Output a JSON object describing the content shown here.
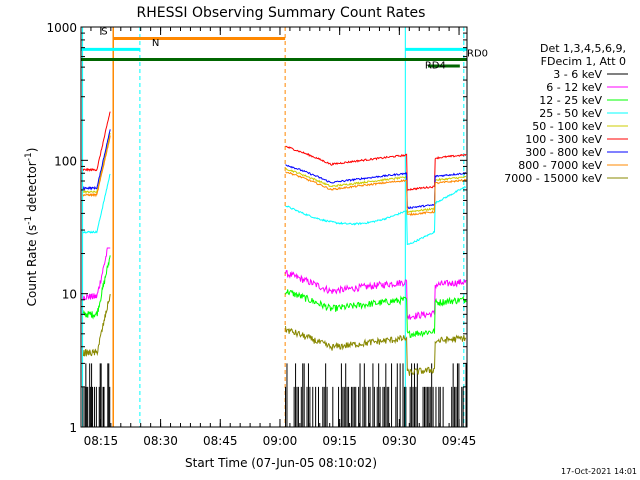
{
  "chart_data": {
    "type": "line",
    "title": "RHESSI Observing Summary Count Rates",
    "xlabel": "Start Time (07-Jun-05 08:10:02)",
    "ylabel_main": "Count Rate (s",
    "ylabel_sup1": "-1",
    "ylabel_mid": " detector",
    "ylabel_sup2": "-1",
    "ylabel_end": ")",
    "yscale": "log",
    "ylim": [
      1,
      1000
    ],
    "xlim_min": [
      0,
      97
    ],
    "y_ticks": [
      {
        "value": 1,
        "label": "1"
      },
      {
        "value": 10,
        "label": "10"
      },
      {
        "value": 100,
        "label": "100"
      },
      {
        "value": 1000,
        "label": "1000"
      }
    ],
    "x_ticks": [
      {
        "min": 5,
        "label": "08:15"
      },
      {
        "min": 20,
        "label": "08:30"
      },
      {
        "min": 35,
        "label": "08:45"
      },
      {
        "min": 50,
        "label": "09:00"
      },
      {
        "min": 65,
        "label": "09:15"
      },
      {
        "min": 80,
        "label": "09:30"
      },
      {
        "min": 95,
        "label": "09:45"
      }
    ],
    "legend_header": [
      "Det 1,3,4,5,6,9,",
      "FDecim 1, Att 0"
    ],
    "series": [
      {
        "name": "3 - 6 keV",
        "color": "#000000",
        "kind": "noise"
      },
      {
        "name": "6 - 12 keV",
        "color": "#ff00ff",
        "base": 9.5,
        "peak": 22
      },
      {
        "name": "12 - 25 keV",
        "color": "#00ff00",
        "base": 7,
        "peak": 21
      },
      {
        "name": "25 - 50 keV",
        "color": "#00ffff",
        "base": 29,
        "peak": 110
      },
      {
        "name": "50 - 100 keV",
        "color": "#cccc00",
        "base": 58,
        "peak": 160
      },
      {
        "name": "100 - 300 keV",
        "color": "#ff0000",
        "base": 85,
        "peak": 240
      },
      {
        "name": "300 - 800 keV",
        "color": "#0000ff",
        "base": 62,
        "peak": 185
      },
      {
        "name": "800 - 7000 keV",
        "color": "#ff8800",
        "base": 55,
        "peak": 175
      },
      {
        "name": "7000 - 15000 keV",
        "color": "#888800",
        "base": 3.6,
        "peak": 10
      }
    ],
    "annotations": [
      {
        "label": "S",
        "color": "#ff8800"
      },
      {
        "label": "N",
        "color": "#00ffff"
      },
      {
        "label": "RD0",
        "color": "#006600"
      },
      {
        "label": "RD4",
        "color": "#006600"
      }
    ],
    "footer_date": "17-Oct-2021 14:01"
  },
  "colors": {
    "saa": "#ff8800",
    "night": "#00ffff",
    "decimation": "#006600"
  }
}
